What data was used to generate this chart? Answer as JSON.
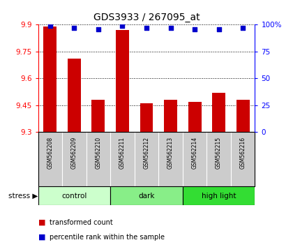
{
  "title": "GDS3933 / 267095_at",
  "samples": [
    "GSM562208",
    "GSM562209",
    "GSM562210",
    "GSM562211",
    "GSM562212",
    "GSM562213",
    "GSM562214",
    "GSM562215",
    "GSM562216"
  ],
  "bar_values": [
    9.89,
    9.71,
    9.48,
    9.87,
    9.46,
    9.48,
    9.47,
    9.52,
    9.48
  ],
  "percentile_values": [
    99,
    97,
    96,
    99,
    97,
    97,
    96,
    96,
    97
  ],
  "ylim_left": [
    9.3,
    9.9
  ],
  "ylim_right": [
    0,
    100
  ],
  "yticks_left": [
    9.3,
    9.45,
    9.6,
    9.75,
    9.9
  ],
  "yticks_right": [
    0,
    25,
    50,
    75,
    100
  ],
  "bar_color": "#cc0000",
  "dot_color": "#0000cc",
  "groups": [
    {
      "label": "control",
      "start": 0,
      "end": 3,
      "color": "#ccffcc"
    },
    {
      "label": "dark",
      "start": 3,
      "end": 6,
      "color": "#88ee88"
    },
    {
      "label": "high light",
      "start": 6,
      "end": 9,
      "color": "#33dd33"
    }
  ],
  "legend_red_label": "transformed count",
  "legend_blue_label": "percentile rank within the sample",
  "label_bg": "#cccccc",
  "background_color": "#ffffff"
}
